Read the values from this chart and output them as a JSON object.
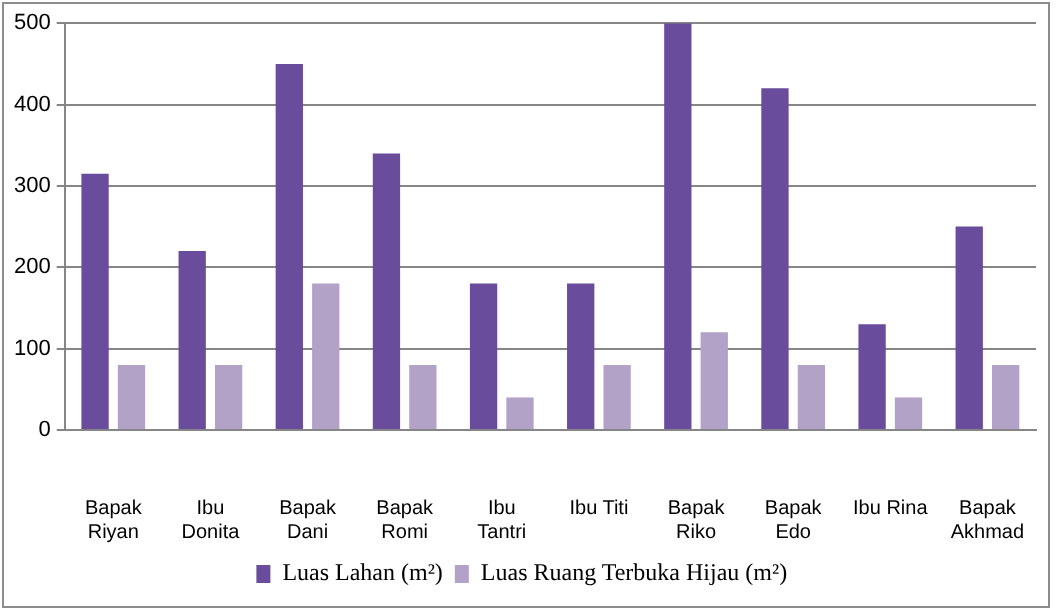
{
  "chart_data": {
    "type": "bar",
    "categories": [
      "Bapak Riyan",
      "Ibu Donita",
      "Bapak Dani",
      "Bapak Romi",
      "Ibu Tantri",
      "Ibu Titi",
      "Bapak Riko",
      "Bapak Edo",
      "Ibu Rina",
      "Bapak Akhmad"
    ],
    "series": [
      {
        "name": "Luas Lahan (m²)",
        "color": "#6a4c9c",
        "values": [
          315,
          220,
          450,
          340,
          180,
          180,
          500,
          420,
          130,
          250
        ]
      },
      {
        "name": "Luas Ruang Terbuka Hijau (m²)",
        "color": "#b3a2c7",
        "values": [
          80,
          80,
          180,
          80,
          40,
          80,
          120,
          80,
          40,
          80
        ]
      }
    ],
    "ylim": [
      0,
      500
    ],
    "yticks": [
      0,
      100,
      200,
      300,
      400,
      500
    ],
    "grid": "y",
    "legend": "bottom"
  }
}
